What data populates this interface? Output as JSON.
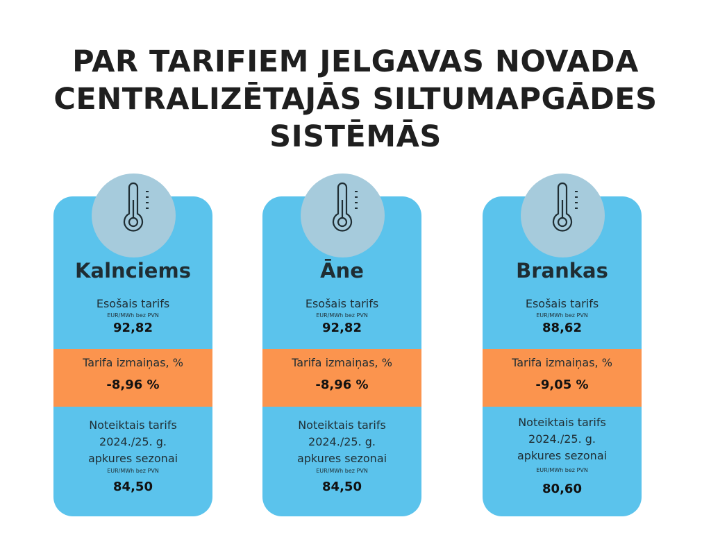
{
  "title": {
    "line1": "PAR TARIFIEM JELGAVAS NOVADA",
    "line2": "CENTRALIZĒTAJĀS SILTUMAPGĀDES",
    "line3": "SISTĒMĀS"
  },
  "cards": [
    {
      "city": "Kalnciems",
      "current_label": "Esošais tarifs",
      "current_unit": "EUR/MWh bez PVN",
      "current_value": "92,82",
      "change_label": "Tarifa izmaiņas, %",
      "change_value": "-8,96 %",
      "new_label_1": "Noteiktais tarifs",
      "new_label_2": "2024./25. g.",
      "new_label_3": "apkures sezonai",
      "new_unit": "EUR/MWh bez PVN",
      "new_value": "84,50"
    },
    {
      "city": "Āne",
      "current_label": "Esošais tarifs",
      "current_unit": "EUR/MWh bez PVN",
      "current_value": "92,82",
      "change_label": "Tarifa izmaiņas, %",
      "change_value": "-8,96 %",
      "new_label_1": "Noteiktais tarifs",
      "new_label_2": "2024./25. g.",
      "new_label_3": "apkures sezonai",
      "new_unit": "EUR/MWh bez PVN",
      "new_value": "84,50"
    },
    {
      "city": "Brankas",
      "current_label": "Esošais tarifs",
      "current_unit": "EUR/MWh bez PVN",
      "current_value": "88,62",
      "change_label": "Tarifa izmaiņas, %",
      "change_value": "-9,05 %",
      "new_label_1": "Noteiktais tarifs",
      "new_label_2": "2024./25. g.",
      "new_label_3": "apkures sezonai",
      "new_unit": "EUR/MWh bez PVN",
      "new_value": "80,60"
    }
  ],
  "icons": {
    "card_icon": "thermometer-icon"
  },
  "colors": {
    "card": "#5bc3ec",
    "band": "#fb944e",
    "circle": "#a6cbdc",
    "text": "#1f1f1f"
  }
}
